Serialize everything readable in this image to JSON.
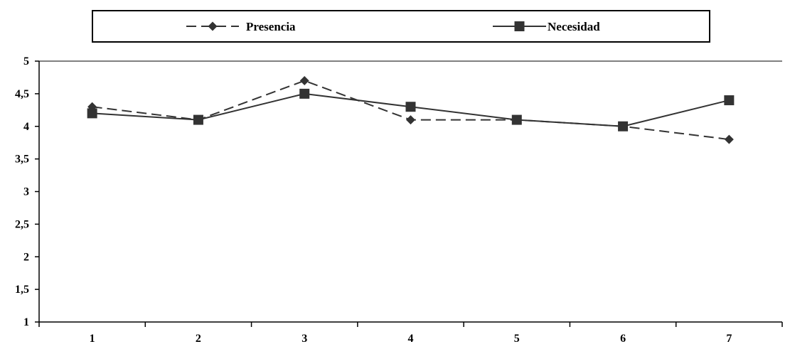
{
  "chart_data": {
    "type": "line",
    "title": "",
    "xlabel": "",
    "ylabel": "",
    "categories": [
      "1",
      "2",
      "3",
      "4",
      "5",
      "6",
      "7"
    ],
    "y_ticks": [
      "1",
      "1,5",
      "2",
      "2,5",
      "3",
      "3,5",
      "4",
      "4,5",
      "5"
    ],
    "ylim": [
      1,
      5
    ],
    "grid": false,
    "legend_position": "top",
    "series": [
      {
        "name": "Presencia",
        "values": [
          4.3,
          4.1,
          4.7,
          4.1,
          4.1,
          4.0,
          3.8
        ],
        "line_style": "dashed",
        "marker": "diamond",
        "color": "#333333"
      },
      {
        "name": "Necesidad",
        "values": [
          4.2,
          4.1,
          4.5,
          4.3,
          4.1,
          4.0,
          4.4
        ],
        "line_style": "solid",
        "marker": "square",
        "color": "#333333"
      }
    ]
  }
}
